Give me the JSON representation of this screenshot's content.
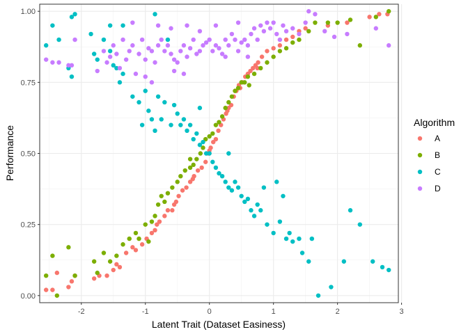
{
  "chart_data": {
    "type": "scatter",
    "title": "",
    "xlabel": "Latent Trait (Dataset Easiness)",
    "ylabel": "Performance",
    "xlim": [
      -2.65,
      2.95
    ],
    "ylim": [
      -0.025,
      1.025
    ],
    "x_ticks": [
      -2,
      -1,
      0,
      1,
      2,
      3
    ],
    "x_tick_labels": [
      "-2",
      "-1",
      "0",
      "1",
      "2",
      "3"
    ],
    "y_ticks": [
      0,
      0.25,
      0.5,
      0.75,
      1.0
    ],
    "y_tick_labels": [
      "0.00",
      "0.25",
      "0.50",
      "0.75",
      "1.00"
    ],
    "grid": true,
    "theme": "bw",
    "legend": {
      "title": "Algorithm",
      "position": "right"
    },
    "series": [
      {
        "name": "A",
        "color": "#F8766D",
        "points": [
          [
            -2.55,
            0.02
          ],
          [
            -2.45,
            0.02
          ],
          [
            -2.38,
            0.08
          ],
          [
            -2.2,
            0.03
          ],
          [
            -2.15,
            0.05
          ],
          [
            -2.1,
            0.07
          ],
          [
            -1.8,
            0.06
          ],
          [
            -1.72,
            0.07
          ],
          [
            -1.6,
            0.07
          ],
          [
            -1.5,
            0.09
          ],
          [
            -1.45,
            0.11
          ],
          [
            -1.4,
            0.1
          ],
          [
            -1.3,
            0.15
          ],
          [
            -1.2,
            0.17
          ],
          [
            -1.05,
            0.18
          ],
          [
            -0.98,
            0.2
          ],
          [
            -0.9,
            0.22
          ],
          [
            -0.82,
            0.25
          ],
          [
            -0.78,
            0.26
          ],
          [
            -0.7,
            0.28
          ],
          [
            -0.65,
            0.3
          ],
          [
            -0.58,
            0.3
          ],
          [
            -0.52,
            0.33
          ],
          [
            -0.48,
            0.35
          ],
          [
            -0.42,
            0.37
          ],
          [
            -0.36,
            0.38
          ],
          [
            -0.3,
            0.4
          ],
          [
            -0.24,
            0.42
          ],
          [
            -0.18,
            0.44
          ],
          [
            -0.12,
            0.45
          ],
          [
            -0.06,
            0.47
          ],
          [
            -0.02,
            0.5
          ],
          [
            0.02,
            0.52
          ],
          [
            0.06,
            0.54
          ],
          [
            0.1,
            0.55
          ],
          [
            0.14,
            0.58
          ],
          [
            0.18,
            0.6
          ],
          [
            0.22,
            0.62
          ],
          [
            0.26,
            0.64
          ],
          [
            0.3,
            0.66
          ],
          [
            0.34,
            0.67
          ],
          [
            0.38,
            0.7
          ],
          [
            0.42,
            0.72
          ],
          [
            0.48,
            0.73
          ],
          [
            0.52,
            0.75
          ],
          [
            0.56,
            0.77
          ],
          [
            0.6,
            0.78
          ],
          [
            0.64,
            0.79
          ],
          [
            0.68,
            0.8
          ],
          [
            0.72,
            0.81
          ],
          [
            0.76,
            0.82
          ],
          [
            0.82,
            0.84
          ],
          [
            0.9,
            0.86
          ],
          [
            1.0,
            0.87
          ],
          [
            1.1,
            0.88
          ],
          [
            1.2,
            0.9
          ],
          [
            1.3,
            0.91
          ],
          [
            1.4,
            0.93
          ],
          [
            1.5,
            0.94
          ],
          [
            1.85,
            0.95
          ],
          [
            2.15,
            0.96
          ],
          [
            2.5,
            0.98
          ],
          [
            2.65,
            0.99
          ],
          [
            2.78,
            0.99
          ],
          [
            -0.26,
            0.41
          ],
          [
            0.28,
            0.65
          ],
          [
            -0.85,
            0.23
          ],
          [
            0.0,
            0.51
          ],
          [
            0.46,
            0.74
          ],
          [
            -1.15,
            0.16
          ],
          [
            0.75,
            0.8
          ],
          [
            -0.55,
            0.32
          ]
        ]
      },
      {
        "name": "B",
        "color": "#7CAE00",
        "points": [
          [
            -2.55,
            0.07
          ],
          [
            -2.38,
            0.0
          ],
          [
            -2.45,
            0.14
          ],
          [
            -2.1,
            0.07
          ],
          [
            -2.2,
            0.17
          ],
          [
            -1.75,
            0.08
          ],
          [
            -1.65,
            0.15
          ],
          [
            -1.55,
            0.12
          ],
          [
            -1.45,
            0.14
          ],
          [
            -1.35,
            0.18
          ],
          [
            -1.25,
            0.2
          ],
          [
            -1.15,
            0.22
          ],
          [
            -1.1,
            0.2
          ],
          [
            -1.0,
            0.25
          ],
          [
            -0.9,
            0.26
          ],
          [
            -0.85,
            0.28
          ],
          [
            -0.8,
            0.32
          ],
          [
            -0.75,
            0.35
          ],
          [
            -0.7,
            0.33
          ],
          [
            -0.65,
            0.36
          ],
          [
            -0.58,
            0.38
          ],
          [
            -0.5,
            0.4
          ],
          [
            -0.45,
            0.42
          ],
          [
            -0.38,
            0.44
          ],
          [
            -0.3,
            0.45
          ],
          [
            -0.25,
            0.46
          ],
          [
            -0.2,
            0.48
          ],
          [
            -0.14,
            0.5
          ],
          [
            -0.1,
            0.52
          ],
          [
            -0.06,
            0.55
          ],
          [
            0.0,
            0.56
          ],
          [
            0.05,
            0.57
          ],
          [
            0.1,
            0.6
          ],
          [
            0.15,
            0.61
          ],
          [
            0.2,
            0.63
          ],
          [
            0.25,
            0.66
          ],
          [
            0.3,
            0.68
          ],
          [
            0.35,
            0.7
          ],
          [
            0.4,
            0.72
          ],
          [
            0.45,
            0.73
          ],
          [
            0.5,
            0.75
          ],
          [
            0.55,
            0.75
          ],
          [
            0.6,
            0.77
          ],
          [
            0.7,
            0.78
          ],
          [
            0.8,
            0.8
          ],
          [
            0.9,
            0.82
          ],
          [
            1.0,
            0.84
          ],
          [
            1.1,
            0.86
          ],
          [
            1.2,
            0.87
          ],
          [
            1.3,
            0.89
          ],
          [
            1.4,
            0.9
          ],
          [
            1.55,
            0.93
          ],
          [
            1.65,
            0.96
          ],
          [
            1.85,
            0.96
          ],
          [
            2.0,
            0.96
          ],
          [
            2.2,
            0.97
          ],
          [
            2.35,
            0.88
          ],
          [
            2.6,
            0.98
          ],
          [
            2.8,
            1.0
          ],
          [
            -1.8,
            0.12
          ],
          [
            -0.95,
            0.19
          ],
          [
            -0.3,
            0.48
          ],
          [
            0.62,
            0.74
          ]
        ]
      },
      {
        "name": "C",
        "color": "#00BFC4",
        "points": [
          [
            -2.55,
            0.88
          ],
          [
            -2.45,
            0.95
          ],
          [
            -2.35,
            0.9
          ],
          [
            -2.15,
            0.98
          ],
          [
            -2.1,
            0.99
          ],
          [
            -2.2,
            0.8
          ],
          [
            -2.15,
            0.77
          ],
          [
            -1.85,
            0.92
          ],
          [
            -1.75,
            0.83
          ],
          [
            -1.65,
            0.9
          ],
          [
            -1.55,
            0.86
          ],
          [
            -1.5,
            0.81
          ],
          [
            -1.45,
            0.8
          ],
          [
            -1.4,
            0.75
          ],
          [
            -1.35,
            0.78
          ],
          [
            -1.2,
            0.7
          ],
          [
            -1.1,
            0.68
          ],
          [
            -1.0,
            0.72
          ],
          [
            -0.95,
            0.65
          ],
          [
            -0.9,
            0.62
          ],
          [
            -0.85,
            0.58
          ],
          [
            -0.8,
            0.7
          ],
          [
            -0.75,
            0.62
          ],
          [
            -0.7,
            0.68
          ],
          [
            -0.6,
            0.6
          ],
          [
            -0.55,
            0.67
          ],
          [
            -0.5,
            0.64
          ],
          [
            -0.45,
            0.6
          ],
          [
            -0.4,
            0.62
          ],
          [
            -0.35,
            0.58
          ],
          [
            -0.3,
            0.6
          ],
          [
            -0.25,
            0.55
          ],
          [
            -0.2,
            0.57
          ],
          [
            -0.15,
            0.53
          ],
          [
            -0.1,
            0.54
          ],
          [
            -0.05,
            0.5
          ],
          [
            0.0,
            0.5
          ],
          [
            0.05,
            0.47
          ],
          [
            0.1,
            0.45
          ],
          [
            0.15,
            0.43
          ],
          [
            0.2,
            0.42
          ],
          [
            0.25,
            0.4
          ],
          [
            0.3,
            0.38
          ],
          [
            0.35,
            0.37
          ],
          [
            0.4,
            0.4
          ],
          [
            0.45,
            0.38
          ],
          [
            0.5,
            0.35
          ],
          [
            0.55,
            0.33
          ],
          [
            0.6,
            0.34
          ],
          [
            0.65,
            0.3
          ],
          [
            0.7,
            0.28
          ],
          [
            0.8,
            0.3
          ],
          [
            0.9,
            0.25
          ],
          [
            1.0,
            0.22
          ],
          [
            1.1,
            0.26
          ],
          [
            1.2,
            0.2
          ],
          [
            1.25,
            0.22
          ],
          [
            1.3,
            0.19
          ],
          [
            1.4,
            0.2
          ],
          [
            1.45,
            0.15
          ],
          [
            1.55,
            0.12
          ],
          [
            1.7,
            0.0
          ],
          [
            1.9,
            0.03
          ],
          [
            2.1,
            0.12
          ],
          [
            2.2,
            0.3
          ],
          [
            2.35,
            0.25
          ],
          [
            2.55,
            0.12
          ],
          [
            2.7,
            0.1
          ],
          [
            2.8,
            0.09
          ],
          [
            -1.55,
            0.95
          ],
          [
            -1.35,
            0.95
          ],
          [
            -0.65,
            0.9
          ],
          [
            -0.85,
            0.99
          ],
          [
            1.6,
            0.2
          ],
          [
            1.05,
            0.4
          ],
          [
            1.15,
            0.35
          ],
          [
            0.75,
            0.32
          ],
          [
            0.85,
            0.38
          ],
          [
            -1.8,
            0.85
          ],
          [
            -1.05,
            0.6
          ],
          [
            -0.15,
            0.66
          ],
          [
            0.3,
            0.5
          ]
        ]
      },
      {
        "name": "D",
        "color": "#C77CFF",
        "points": [
          [
            -2.55,
            0.83
          ],
          [
            -2.45,
            0.82
          ],
          [
            -2.35,
            0.82
          ],
          [
            -2.15,
            0.81
          ],
          [
            -2.1,
            0.9
          ],
          [
            -1.65,
            0.86
          ],
          [
            -1.55,
            0.84
          ],
          [
            -1.5,
            0.88
          ],
          [
            -1.45,
            0.85
          ],
          [
            -1.4,
            0.8
          ],
          [
            -1.35,
            0.9
          ],
          [
            -1.3,
            0.83
          ],
          [
            -1.25,
            0.86
          ],
          [
            -1.2,
            0.88
          ],
          [
            -1.1,
            0.85
          ],
          [
            -1.05,
            0.9
          ],
          [
            -1.0,
            0.83
          ],
          [
            -0.95,
            0.87
          ],
          [
            -0.9,
            0.86
          ],
          [
            -0.85,
            0.82
          ],
          [
            -0.8,
            0.88
          ],
          [
            -0.75,
            0.9
          ],
          [
            -0.7,
            0.86
          ],
          [
            -0.65,
            0.88
          ],
          [
            -0.6,
            0.85
          ],
          [
            -0.55,
            0.83
          ],
          [
            -0.5,
            0.82
          ],
          [
            -0.45,
            0.86
          ],
          [
            -0.4,
            0.88
          ],
          [
            -0.35,
            0.84
          ],
          [
            -0.3,
            0.87
          ],
          [
            -0.25,
            0.9
          ],
          [
            -0.2,
            0.85
          ],
          [
            -0.15,
            0.86
          ],
          [
            -0.1,
            0.88
          ],
          [
            -0.05,
            0.89
          ],
          [
            0.0,
            0.9
          ],
          [
            0.05,
            0.86
          ],
          [
            0.1,
            0.88
          ],
          [
            0.15,
            0.87
          ],
          [
            0.2,
            0.85
          ],
          [
            0.25,
            0.9
          ],
          [
            0.3,
            0.88
          ],
          [
            0.35,
            0.92
          ],
          [
            0.4,
            0.9
          ],
          [
            0.45,
            0.86
          ],
          [
            0.5,
            0.89
          ],
          [
            0.55,
            0.9
          ],
          [
            0.6,
            0.88
          ],
          [
            0.65,
            0.92
          ],
          [
            0.7,
            0.94
          ],
          [
            0.75,
            0.9
          ],
          [
            0.8,
            0.95
          ],
          [
            0.85,
            0.93
          ],
          [
            0.9,
            0.96
          ],
          [
            0.95,
            0.94
          ],
          [
            1.0,
            0.96
          ],
          [
            1.05,
            0.92
          ],
          [
            1.1,
            0.9
          ],
          [
            1.15,
            0.95
          ],
          [
            1.2,
            0.93
          ],
          [
            1.3,
            0.94
          ],
          [
            1.4,
            0.92
          ],
          [
            1.5,
            0.96
          ],
          [
            1.55,
            1.0
          ],
          [
            1.65,
            0.99
          ],
          [
            1.8,
            0.93
          ],
          [
            1.95,
            0.91
          ],
          [
            2.15,
            0.92
          ],
          [
            2.6,
            0.94
          ],
          [
            2.8,
            0.88
          ],
          [
            -1.2,
            0.96
          ],
          [
            -0.8,
            0.95
          ],
          [
            -0.6,
            0.94
          ],
          [
            -0.35,
            0.95
          ],
          [
            -0.15,
            0.93
          ],
          [
            0.1,
            0.95
          ],
          [
            0.45,
            0.96
          ],
          [
            -1.75,
            0.79
          ],
          [
            -1.0,
            0.77
          ],
          [
            -0.9,
            0.75
          ],
          [
            -1.15,
            0.78
          ],
          [
            -0.4,
            0.78
          ],
          [
            -0.55,
            0.79
          ],
          [
            0.25,
            0.84
          ],
          [
            0.6,
            0.84
          ],
          [
            -2.2,
            0.81
          ],
          [
            -1.6,
            0.82
          ]
        ]
      }
    ]
  }
}
